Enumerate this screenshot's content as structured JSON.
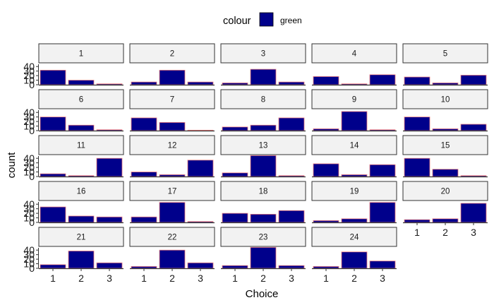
{
  "chart_data": {
    "type": "bar",
    "xlabel": "Choice",
    "ylabel": "count",
    "categories": [
      "1",
      "2",
      "3"
    ],
    "y_ticks": [
      0,
      10,
      20,
      30,
      40
    ],
    "ylim": [
      0,
      45
    ],
    "grid": false,
    "legend": {
      "title": "colour",
      "entries": [
        "green"
      ],
      "position": "top"
    },
    "colors": {
      "fill": "#00008B",
      "outline": "#F08080",
      "strip_bg": "#F2F2F2",
      "strip_border": "#333333",
      "axis": "#333333"
    },
    "facets": [
      {
        "label": "1",
        "values": [
          32,
          10,
          2
        ]
      },
      {
        "label": "2",
        "values": [
          6,
          32,
          6
        ]
      },
      {
        "label": "3",
        "values": [
          4,
          34,
          6
        ]
      },
      {
        "label": "4",
        "values": [
          18,
          2,
          22
        ]
      },
      {
        "label": "5",
        "values": [
          17,
          4,
          21
        ]
      },
      {
        "label": "6",
        "values": [
          30,
          12,
          2
        ]
      },
      {
        "label": "7",
        "values": [
          28,
          18,
          1
        ]
      },
      {
        "label": "8",
        "values": [
          8,
          12,
          28
        ]
      },
      {
        "label": "9",
        "values": [
          4,
          42,
          2
        ]
      },
      {
        "label": "10",
        "values": [
          30,
          4,
          14
        ]
      },
      {
        "label": "11",
        "values": [
          6,
          2,
          40
        ]
      },
      {
        "label": "12",
        "values": [
          10,
          4,
          36
        ]
      },
      {
        "label": "13",
        "values": [
          8,
          46,
          2
        ]
      },
      {
        "label": "14",
        "values": [
          28,
          4,
          26
        ]
      },
      {
        "label": "15",
        "values": [
          40,
          16,
          2
        ]
      },
      {
        "label": "16",
        "values": [
          34,
          14,
          12
        ]
      },
      {
        "label": "17",
        "values": [
          12,
          44,
          2
        ]
      },
      {
        "label": "18",
        "values": [
          20,
          18,
          26
        ]
      },
      {
        "label": "19",
        "values": [
          4,
          8,
          44
        ]
      },
      {
        "label": "20",
        "values": [
          6,
          8,
          42
        ]
      },
      {
        "label": "21",
        "values": [
          8,
          38,
          12
        ]
      },
      {
        "label": "22",
        "values": [
          4,
          40,
          12
        ]
      },
      {
        "label": "23",
        "values": [
          6,
          46,
          6
        ]
      },
      {
        "label": "24",
        "values": [
          4,
          36,
          16
        ]
      }
    ]
  }
}
